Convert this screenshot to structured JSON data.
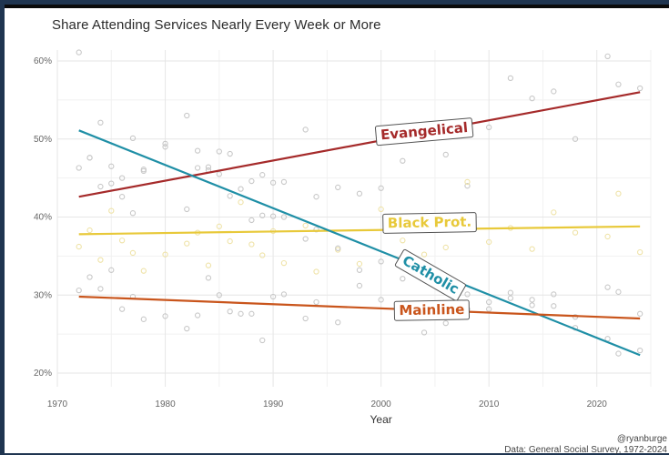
{
  "title": "Share Attending Services Nearly Every Week or More",
  "credit": {
    "handle": "@ryanburge",
    "source": "Data: General Social Survey, 1972-2024"
  },
  "colors": {
    "evangelical": "#a52a2a",
    "black_prot": "#e8c93a",
    "catholic": "#1f8fa6",
    "mainline": "#c9551c",
    "grid": "#e6e6e6",
    "point": "#c8c8c8"
  },
  "chart_data": {
    "type": "scatter",
    "title": "Share Attending Services Nearly Every Week or More",
    "xlabel": "Year",
    "ylabel": "",
    "xlim": [
      1970,
      2025
    ],
    "ylim": [
      19.5,
      62
    ],
    "x_ticks": [
      1970,
      1980,
      1990,
      2000,
      2010,
      2020
    ],
    "x_tick_labels": [
      "1970",
      "1980",
      "1990",
      "2000",
      "2010",
      "2020"
    ],
    "y_ticks": [
      20,
      30,
      40,
      50,
      60
    ],
    "y_tick_labels": [
      "20%",
      "30%",
      "40%",
      "50%",
      "60%"
    ],
    "grid": true,
    "legend": "none (direct labels on lines)",
    "series": [
      {
        "name": "Evangelical",
        "color": "#a52a2a",
        "trend": {
          "x": [
            1972,
            2024
          ],
          "y": [
            42.6,
            56.0
          ]
        },
        "label_at": {
          "x": 2004,
          "y": 51.0,
          "angle": -5
        },
        "points": [
          [
            1972,
            46.3
          ],
          [
            1973,
            47.6
          ],
          [
            1974,
            52.1
          ],
          [
            1975,
            46.5
          ],
          [
            1976,
            45.0
          ],
          [
            1977,
            50.1
          ],
          [
            1978,
            45.9
          ],
          [
            1980,
            49.0
          ],
          [
            1982,
            53.0
          ],
          [
            1983,
            48.5
          ],
          [
            1984,
            46.0
          ],
          [
            1985,
            48.4
          ],
          [
            1986,
            48.1
          ],
          [
            1988,
            44.6
          ],
          [
            1989,
            45.4
          ],
          [
            1990,
            44.4
          ],
          [
            1991,
            44.5
          ],
          [
            1993,
            51.2
          ],
          [
            1994,
            42.6
          ],
          [
            1996,
            43.8
          ],
          [
            1998,
            43.0
          ],
          [
            2000,
            43.7
          ],
          [
            2002,
            47.2
          ],
          [
            2004,
            50.1
          ],
          [
            2006,
            48.0
          ],
          [
            2008,
            44.0
          ],
          [
            2010,
            51.5
          ],
          [
            2012,
            57.8
          ],
          [
            2014,
            55.2
          ],
          [
            2016,
            56.1
          ],
          [
            2018,
            50.0
          ],
          [
            2021,
            60.6
          ],
          [
            2022,
            57.0
          ],
          [
            2024,
            56.5
          ]
        ]
      },
      {
        "name": "Black Prot.",
        "color": "#e8c93a",
        "trend": {
          "x": [
            1972,
            2024
          ],
          "y": [
            37.8,
            38.8
          ]
        },
        "label_at": {
          "x": 2004.5,
          "y": 39.3,
          "angle": -1
        },
        "points": [
          [
            1972,
            36.2
          ],
          [
            1973,
            38.3
          ],
          [
            1974,
            34.5
          ],
          [
            1975,
            40.8
          ],
          [
            1976,
            37.0
          ],
          [
            1977,
            35.4
          ],
          [
            1978,
            33.1
          ],
          [
            1980,
            35.2
          ],
          [
            1982,
            36.6
          ],
          [
            1983,
            38.0
          ],
          [
            1984,
            33.8
          ],
          [
            1985,
            38.8
          ],
          [
            1986,
            36.9
          ],
          [
            1987,
            41.9
          ],
          [
            1988,
            36.5
          ],
          [
            1989,
            35.1
          ],
          [
            1990,
            38.2
          ],
          [
            1991,
            34.1
          ],
          [
            1993,
            38.9
          ],
          [
            1994,
            33.0
          ],
          [
            1996,
            35.8
          ],
          [
            1998,
            34.0
          ],
          [
            2000,
            41.0
          ],
          [
            2002,
            37.0
          ],
          [
            2004,
            35.2
          ],
          [
            2006,
            36.1
          ],
          [
            2008,
            44.5
          ],
          [
            2010,
            36.8
          ],
          [
            2012,
            38.6
          ],
          [
            2014,
            35.9
          ],
          [
            2016,
            40.6
          ],
          [
            2018,
            38.0
          ],
          [
            2021,
            37.5
          ],
          [
            2022,
            43.0
          ],
          [
            2024,
            35.5
          ]
        ]
      },
      {
        "name": "Catholic",
        "color": "#1f8fa6",
        "trend": {
          "x": [
            1972,
            2024
          ],
          "y": [
            51.1,
            22.3
          ]
        },
        "label_at": {
          "x": 2004.6,
          "y": 32.6,
          "angle": 30
        },
        "points": [
          [
            1972,
            61.1
          ],
          [
            1973,
            47.6
          ],
          [
            1974,
            43.9
          ],
          [
            1975,
            44.3
          ],
          [
            1976,
            42.6
          ],
          [
            1977,
            40.5
          ],
          [
            1978,
            46.1
          ],
          [
            1980,
            49.4
          ],
          [
            1982,
            41.0
          ],
          [
            1983,
            46.3
          ],
          [
            1984,
            46.4
          ],
          [
            1985,
            45.5
          ],
          [
            1986,
            42.7
          ],
          [
            1987,
            43.6
          ],
          [
            1988,
            39.6
          ],
          [
            1989,
            40.2
          ],
          [
            1990,
            40.1
          ],
          [
            1991,
            40.0
          ],
          [
            1993,
            37.2
          ],
          [
            1994,
            38.4
          ],
          [
            1996,
            36.0
          ],
          [
            1998,
            33.2
          ],
          [
            2000,
            34.3
          ],
          [
            2002,
            32.1
          ],
          [
            2004,
            34.0
          ],
          [
            2006,
            31.0
          ],
          [
            2008,
            30.1
          ],
          [
            2010,
            28.2
          ],
          [
            2012,
            29.6
          ],
          [
            2014,
            28.7
          ],
          [
            2016,
            28.6
          ],
          [
            2018,
            25.8
          ],
          [
            2021,
            24.4
          ],
          [
            2022,
            22.5
          ],
          [
            2024,
            22.9
          ]
        ]
      },
      {
        "name": "Mainline",
        "color": "#c9551c",
        "trend": {
          "x": [
            1972,
            2024
          ],
          "y": [
            29.8,
            27.0
          ]
        },
        "label_at": {
          "x": 2004.7,
          "y": 28.1,
          "angle": -1
        },
        "points": [
          [
            1972,
            30.6
          ],
          [
            1973,
            32.3
          ],
          [
            1974,
            30.8
          ],
          [
            1975,
            33.2
          ],
          [
            1976,
            28.2
          ],
          [
            1977,
            29.8
          ],
          [
            1978,
            26.9
          ],
          [
            1980,
            27.3
          ],
          [
            1982,
            25.7
          ],
          [
            1983,
            27.4
          ],
          [
            1984,
            32.2
          ],
          [
            1985,
            30.0
          ],
          [
            1986,
            27.9
          ],
          [
            1987,
            27.6
          ],
          [
            1988,
            27.6
          ],
          [
            1989,
            24.2
          ],
          [
            1990,
            29.8
          ],
          [
            1991,
            30.1
          ],
          [
            1993,
            27.0
          ],
          [
            1994,
            29.1
          ],
          [
            1996,
            26.5
          ],
          [
            1998,
            31.2
          ],
          [
            2000,
            29.4
          ],
          [
            2002,
            27.8
          ],
          [
            2004,
            25.2
          ],
          [
            2006,
            26.4
          ],
          [
            2008,
            28.2
          ],
          [
            2010,
            29.1
          ],
          [
            2012,
            30.3
          ],
          [
            2014,
            29.4
          ],
          [
            2016,
            30.1
          ],
          [
            2018,
            27.2
          ],
          [
            2021,
            31.0
          ],
          [
            2022,
            30.4
          ],
          [
            2024,
            27.6
          ]
        ]
      }
    ]
  }
}
